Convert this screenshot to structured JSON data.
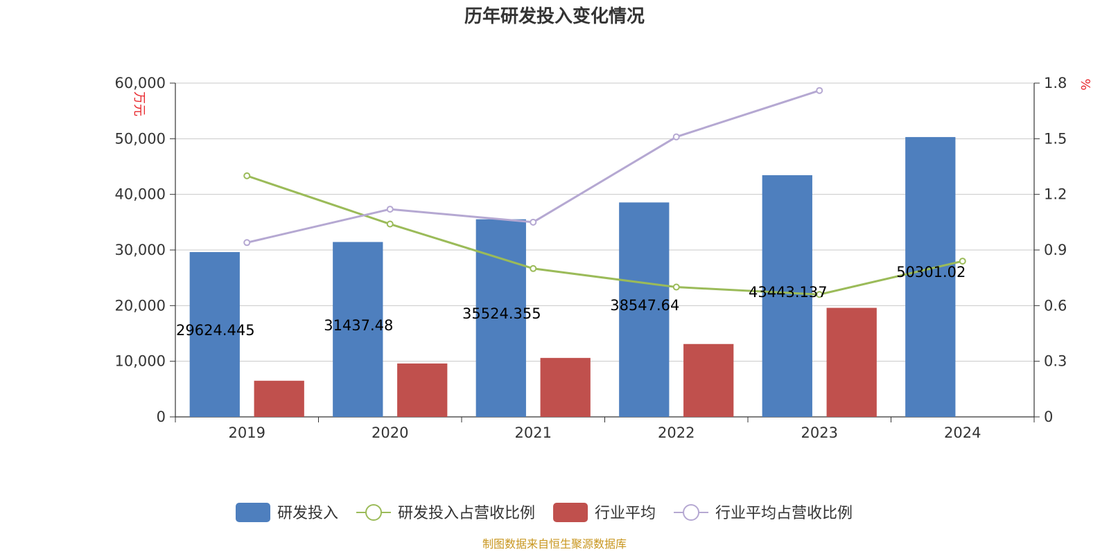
{
  "chart_data": {
    "type": "bar",
    "title": "历年研发投入变化情况",
    "categories": [
      "2019",
      "2020",
      "2021",
      "2022",
      "2023",
      "2024"
    ],
    "y_left": {
      "unit": "万元",
      "ylim": [
        0,
        60000
      ],
      "ticks": [
        "0",
        "10,000",
        "20,000",
        "30,000",
        "40,000",
        "50,000",
        "60,000"
      ]
    },
    "y_right": {
      "unit": "%",
      "ylim": [
        0,
        1.8
      ],
      "ticks": [
        "0",
        "0.3",
        "0.6",
        "0.9",
        "1.2",
        "1.5",
        "1.8"
      ]
    },
    "grid": true,
    "legend_position": "bottom",
    "series": [
      {
        "name": "研发投入",
        "kind": "bar",
        "axis": "left",
        "color": "#4e7fbe",
        "values": [
          29624.445,
          31437.48,
          35524.355,
          38547.64,
          43443.137,
          50301.02
        ],
        "labels": [
          "29624.445",
          "31437.48",
          "35524.355",
          "38547.64",
          "43443.137",
          "50301.02"
        ]
      },
      {
        "name": "研发投入占营收比例",
        "kind": "line",
        "axis": "right",
        "color": "#9bbb59",
        "values": [
          1.3,
          1.04,
          0.8,
          0.7,
          0.66,
          0.84
        ]
      },
      {
        "name": "行业平均",
        "kind": "bar",
        "axis": "left",
        "color": "#c0504d",
        "values": [
          6500,
          9600,
          10600,
          13100,
          19600,
          null
        ]
      },
      {
        "name": "行业平均占营收比例",
        "kind": "line",
        "axis": "right",
        "color": "#b5a8d2",
        "values": [
          0.94,
          1.12,
          1.05,
          1.51,
          1.76,
          null
        ]
      }
    ]
  },
  "source": "制图数据来自恒生聚源数据库"
}
